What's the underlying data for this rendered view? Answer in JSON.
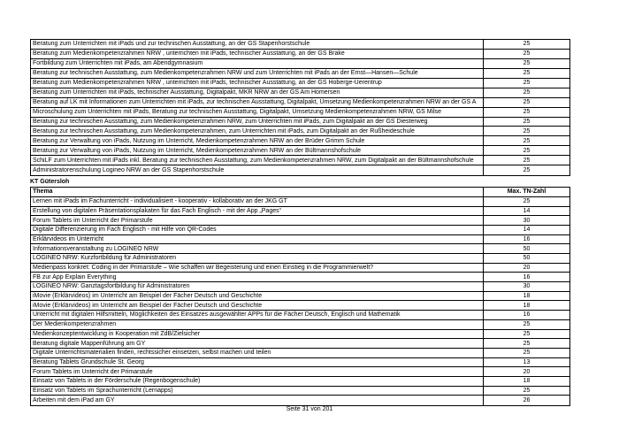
{
  "page": {
    "footer": "Seite 31 von 201"
  },
  "section_label": "KT Gütersloh",
  "table1": {
    "rows": [
      {
        "thema": "Beratung zum Unterrichten mit iPads und zur technischen Ausstattung, an der GS Stapenhorstschule",
        "tn": "25"
      },
      {
        "thema": "Beratung zum Medienkompetenzrahmen NRW , unterrichten mit iPads, technischer Ausstattung, an der GS Brake",
        "tn": "25"
      },
      {
        "thema": "Fortbildung zum Unterrichten mit iPads, am Abendgymnasium",
        "tn": "25"
      },
      {
        "thema": "Beratung zur technischen Ausstattung, zum Medienkompetenzrahmen NRW und zum Unterrichten mit iPads an der Ernst—Hansen—Schule",
        "tn": "25"
      },
      {
        "thema": "Beratung zum Medienkompetenzrahmen NRW , unterrichten mit iPads, technischer Ausstattung, an der GS Hoberge-Uerentrup",
        "tn": "25"
      },
      {
        "thema": "Beratung zum Unterrichten mit iPads, technischer Ausstattung, Digitalpakt, MKR NRW an der GS Am Homersen",
        "tn": "25"
      },
      {
        "thema": "Beratung auf LK mit Informationen zum Unterrichten mit iPads, zur technischen Ausstattung, Digitalpakt, Umsetzung Medienkompetenzrahmen NRW an der GS A",
        "tn": "25"
      },
      {
        "thema": "Microschulung zum Unterrichten mit iPads, Beratung zur technischen Ausstattung, Digitalpakt, Umsetzung Medienkompetenzrahmen NRW, GS Milse",
        "tn": "25"
      },
      {
        "thema": "Beratung zur technischen Ausstattung, zum Medienkompetenzrahmen NRW, zum Unterrichten mit iPads, zum Digitalpakt an der GS Diesterweg",
        "tn": "25"
      },
      {
        "thema": "Beratung zur technischen Ausstattung, zum Medienkompetenzrahmen, zum Unterrichten mit iPads, zum Digitalpakt an der Rußheideschule",
        "tn": "25"
      },
      {
        "thema": "Beratung zur Verwaltung von iPads, Nutzung im Unterricht, Medienkompetenzrahmen NRW an der Brüder Grimm Schule",
        "tn": "25"
      },
      {
        "thema": "Beratung zur Verwaltung von iPads, Nutzung im Unterricht, Medienkompetenzrahmen NRW an der Bültmannshofschule",
        "tn": "25"
      },
      {
        "thema": "SchiLF zum Unterrichten mit iPads inkl. Beratung zur technischen Ausstattung, zum Medienkompetenzrahmen NRW, zum Digitalpakt an der Bültmannshofschule",
        "tn": "25"
      },
      {
        "thema": "Administratorenschulung Logineo NRW an der GS Stapenhorstschule",
        "tn": "25"
      }
    ]
  },
  "table2": {
    "header": {
      "thema": "Thema",
      "tn": "Max. TN-Zahl"
    },
    "rows": [
      {
        "thema": "Lernen mit iPads im Fachunterricht - individualisiert - kooperativ - kollaborativ an der JKG GT",
        "tn": "25"
      },
      {
        "thema": "Erstellung von digitalen Präsentationsplakaten für das Fach Englisch  - mit der App „Pages“",
        "tn": "14"
      },
      {
        "thema": "Forum Tablets im Unterricht der Primarstufe",
        "tn": "30"
      },
      {
        "thema": "Digitale Differenzierung im Fach Englisch  - mit Hilfe von QR-Codes",
        "tn": "14"
      },
      {
        "thema": "Erklärvideos im Unterricht",
        "tn": "16"
      },
      {
        "thema": "Informationsveranstaltung zu LOGINEO NRW",
        "tn": "50"
      },
      {
        "thema": "LOGINEO NRW: Kurzfortbildung für Administratoren",
        "tn": "50"
      },
      {
        "thema": "Medienpass konkret: Coding in der Primarstufe – Wie schaffen wir Begeisterung und einen Einstieg in die Programmierwelt?",
        "tn": "20"
      },
      {
        "thema": "FB zur App Explain Everything",
        "tn": "16"
      },
      {
        "thema": "LOGINEO NRW: Ganztagsfortbildung für Administratoren",
        "tn": "30"
      },
      {
        "thema": "iMovie (Erklärvideos) im Unterricht  am Beispiel der Fächer Deutsch und Geschichte",
        "tn": "18"
      },
      {
        "thema": "iMovie (Erklärvideos) im Unterricht  am Beispiel der Fächer Deutsch und Geschichte",
        "tn": "18"
      },
      {
        "thema": "Unterricht mit digitalen Hilfsmitteln, Möglichkeiten des Einsatzes ausgewählter APPs für die Fächer Deutsch, Englisch und Mathematik",
        "tn": "16"
      },
      {
        "thema": "Der Medienkompetenzrahmen",
        "tn": "25"
      },
      {
        "thema": "Medienkonzeptentwicklung in Kooperation mit ZdB/Zielsicher",
        "tn": "25"
      },
      {
        "thema": "Beratung digitale Mappenführung am GY",
        "tn": "25"
      },
      {
        "thema": "Digitale Unterrichtsmaterialien finden, rechtssicher einsetzen, selbst machen und teilen",
        "tn": "25"
      },
      {
        "thema": "Beratung Tablets Grundschule St. Georg",
        "tn": "13"
      },
      {
        "thema": "Forum Tablets im Unterricht der Primarstufe",
        "tn": "20"
      },
      {
        "thema": "Einsatz von Tablets in der Förderschule (Regenbogenschule)",
        "tn": "18"
      },
      {
        "thema": "Einsatz von Tablets im Sprachunterricht (Lernapps)",
        "tn": "25"
      },
      {
        "thema": "Arbeiten mit dem iPad am GY",
        "tn": "26"
      }
    ]
  }
}
